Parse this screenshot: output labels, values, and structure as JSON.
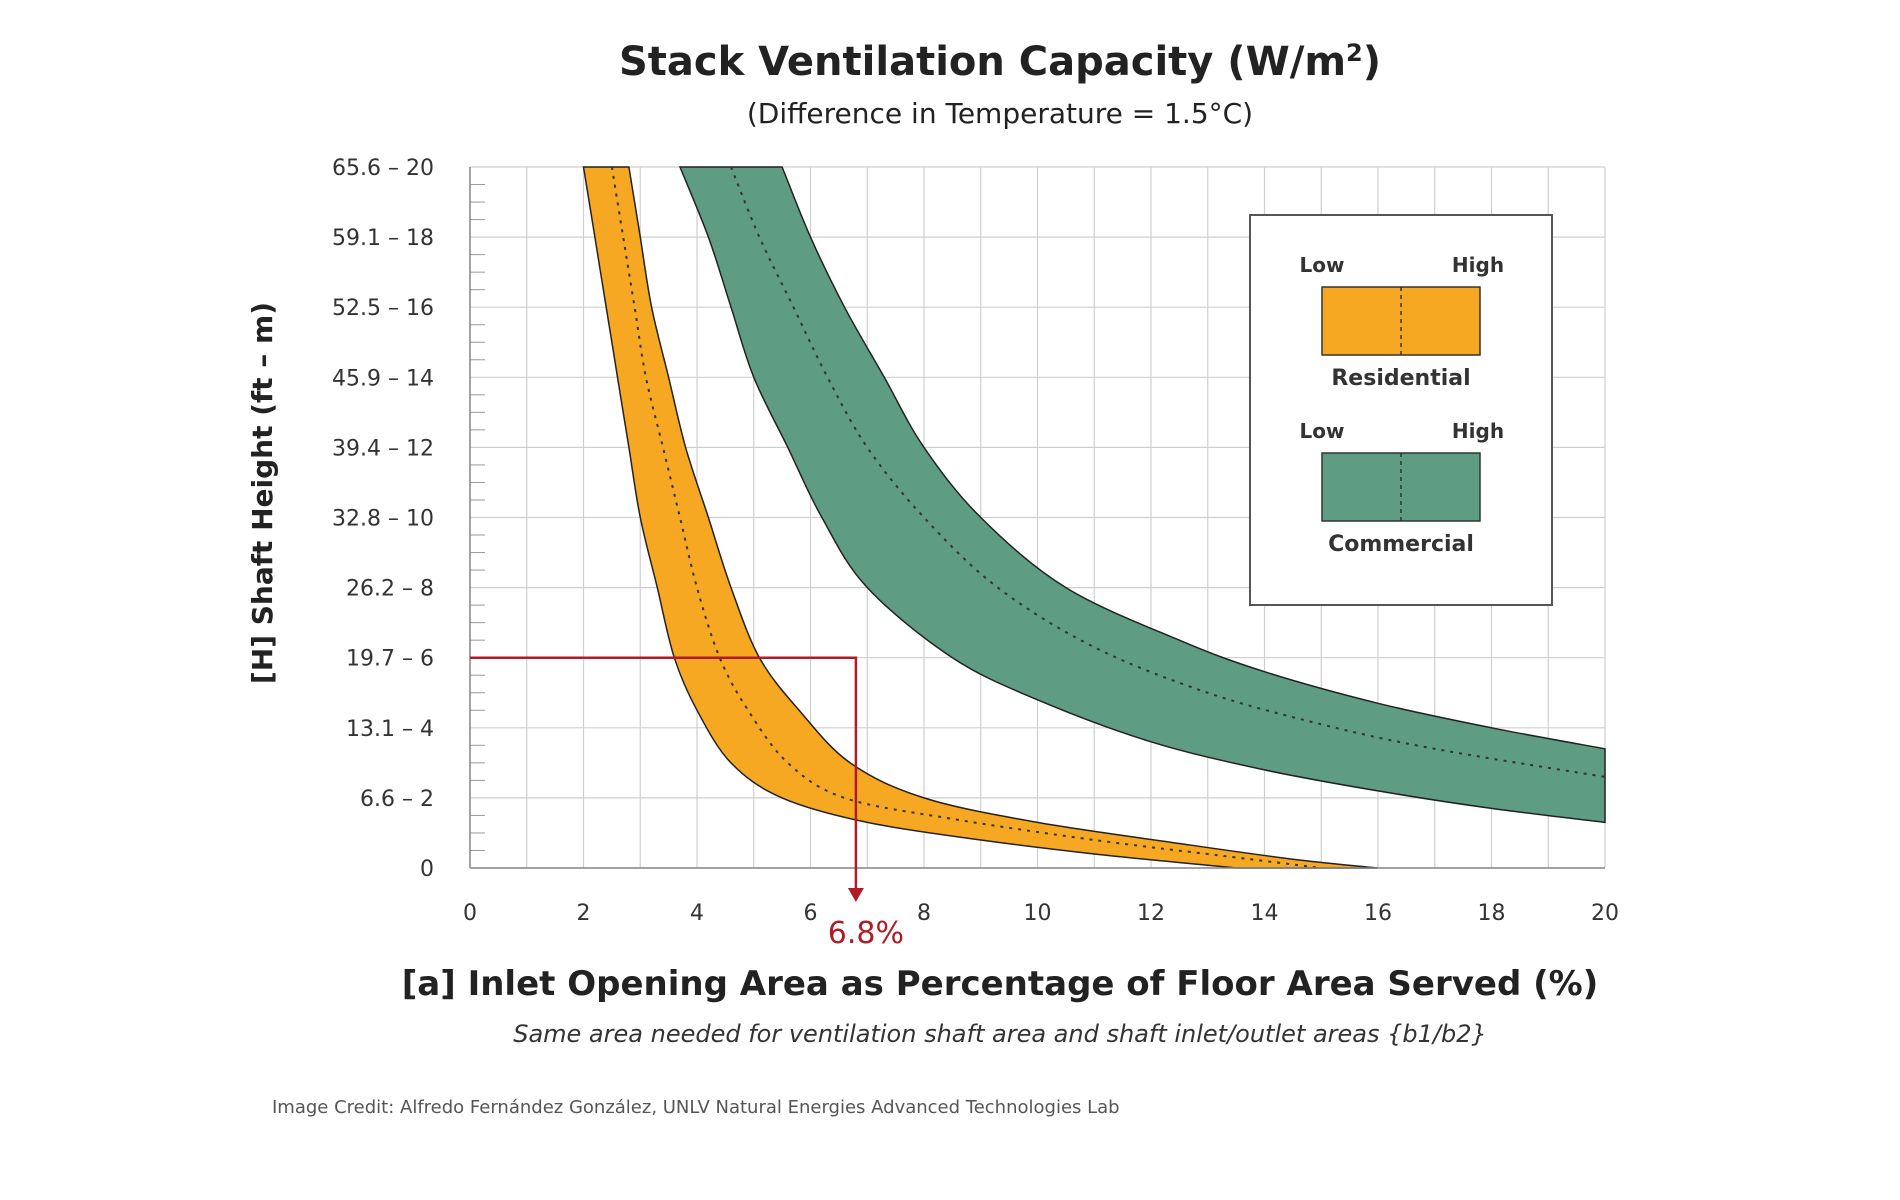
{
  "chart_data": {
    "type": "area",
    "title": "Stack Ventilation Capacity (W/m",
    "title_sup": "2",
    "title_end": ")",
    "subtitle": "(Difference in Temperature = 1.5°C)",
    "xlabel": "[a] Inlet Opening Area as Percentage of Floor Area Served (%)",
    "xnote": "Same area needed for ventilation shaft area and shaft inlet/outlet areas {b1/b2}",
    "ylabel": "[H] Shaft Height (ft – m)",
    "xlim": [
      0,
      20
    ],
    "ylim": [
      0,
      20
    ],
    "x_ticks": [
      0,
      2,
      4,
      6,
      8,
      10,
      12,
      14,
      16,
      18,
      20
    ],
    "y_ticks": [
      {
        "value": 0,
        "label": "0"
      },
      {
        "value": 2,
        "label": "6.6 – 2"
      },
      {
        "value": 4,
        "label": "13.1 – 4"
      },
      {
        "value": 6,
        "label": "19.7 – 6"
      },
      {
        "value": 8,
        "label": "26.2 – 8"
      },
      {
        "value": 10,
        "label": "32.8 – 10"
      },
      {
        "value": 12,
        "label": "39.4 – 12"
      },
      {
        "value": 14,
        "label": "45.9 – 14"
      },
      {
        "value": 16,
        "label": "52.5 – 16"
      },
      {
        "value": 18,
        "label": "59.1 – 18"
      },
      {
        "value": 20,
        "label": "65.6 – 20"
      }
    ],
    "grid": true,
    "series": [
      {
        "name": "Residential",
        "color": "#f7a823",
        "low": [
          [
            2.0,
            20
          ],
          [
            2.2,
            18
          ],
          [
            2.4,
            16
          ],
          [
            2.6,
            14
          ],
          [
            2.8,
            12
          ],
          [
            3.0,
            10
          ],
          [
            3.3,
            8
          ],
          [
            3.6,
            6
          ],
          [
            4.0,
            4.5
          ],
          [
            4.6,
            3
          ],
          [
            5.5,
            2
          ],
          [
            7,
            1.3
          ],
          [
            9,
            0.8
          ],
          [
            11,
            0.4
          ],
          [
            13.5,
            0
          ]
        ],
        "mid": [
          [
            2.5,
            20
          ],
          [
            2.7,
            18
          ],
          [
            2.9,
            16
          ],
          [
            3.1,
            14
          ],
          [
            3.4,
            12
          ],
          [
            3.7,
            10
          ],
          [
            4.0,
            8
          ],
          [
            4.4,
            6
          ],
          [
            4.9,
            4.5
          ],
          [
            5.6,
            3
          ],
          [
            6.6,
            2
          ],
          [
            8.5,
            1.4
          ],
          [
            11,
            0.8
          ],
          [
            13.5,
            0.3
          ],
          [
            15,
            0
          ]
        ],
        "high": [
          [
            2.8,
            20
          ],
          [
            3.0,
            18
          ],
          [
            3.2,
            16
          ],
          [
            3.5,
            14
          ],
          [
            3.8,
            12
          ],
          [
            4.2,
            10
          ],
          [
            4.6,
            8
          ],
          [
            5.1,
            6
          ],
          [
            5.8,
            4.5
          ],
          [
            6.7,
            3
          ],
          [
            8,
            2
          ],
          [
            10,
            1.3
          ],
          [
            12.5,
            0.7
          ],
          [
            14.5,
            0.25
          ],
          [
            16,
            0
          ]
        ]
      },
      {
        "name": "Commercial",
        "color": "#5e9c84",
        "low": [
          [
            3.7,
            20
          ],
          [
            4.2,
            18
          ],
          [
            4.6,
            16
          ],
          [
            5.0,
            14
          ],
          [
            5.6,
            12
          ],
          [
            6.2,
            10
          ],
          [
            7.0,
            8
          ],
          [
            8.5,
            6
          ],
          [
            10,
            4.8
          ],
          [
            12,
            3.6
          ],
          [
            14,
            2.8
          ],
          [
            16,
            2.2
          ],
          [
            18,
            1.7
          ],
          [
            20,
            1.3
          ]
        ],
        "mid": [
          [
            4.6,
            20
          ],
          [
            5.1,
            18
          ],
          [
            5.7,
            16
          ],
          [
            6.3,
            14
          ],
          [
            7.0,
            12
          ],
          [
            8.0,
            10
          ],
          [
            9.3,
            8
          ],
          [
            11,
            6.3
          ],
          [
            13,
            5.0
          ],
          [
            15,
            4.1
          ],
          [
            17,
            3.4
          ],
          [
            20,
            2.6
          ]
        ],
        "high": [
          [
            5.5,
            20
          ],
          [
            6.0,
            18
          ],
          [
            6.6,
            16
          ],
          [
            7.3,
            14
          ],
          [
            8.0,
            12
          ],
          [
            9.0,
            10
          ],
          [
            10.5,
            8
          ],
          [
            12.5,
            6.5
          ],
          [
            14,
            5.6
          ],
          [
            16,
            4.7
          ],
          [
            18,
            4.0
          ],
          [
            20,
            3.4
          ]
        ]
      }
    ],
    "marker": {
      "x": 6.8,
      "y": 6,
      "label": "6.8%",
      "color": "#b01b28"
    },
    "legend": {
      "position": "top-right",
      "entries": [
        {
          "name": "Residential",
          "low": "Low",
          "high": "High",
          "color": "#f7a823"
        },
        {
          "name": "Commercial",
          "low": "Low",
          "high": "High",
          "color": "#5e9c84"
        }
      ]
    },
    "credit": "Image Credit: Alfredo Fernández González, UNLV Natural Energies Advanced Technologies Lab"
  }
}
